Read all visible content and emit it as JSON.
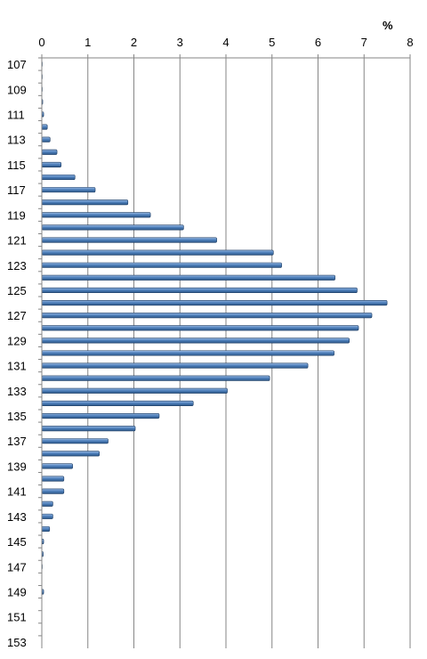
{
  "chart_data": {
    "type": "bar",
    "orientation": "horizontal",
    "unit_label": "%",
    "title": "",
    "xlabel": "",
    "ylabel": "",
    "xlim": [
      0,
      8
    ],
    "x_ticks": [
      0,
      1,
      2,
      3,
      4,
      5,
      6,
      7,
      8
    ],
    "x_axis_position": "top",
    "grid": "vertical",
    "legend": "none",
    "bar_color": "#4f81bd",
    "categories": [
      107,
      108,
      109,
      110,
      111,
      112,
      113,
      114,
      115,
      116,
      117,
      118,
      119,
      120,
      121,
      122,
      123,
      124,
      125,
      126,
      127,
      128,
      129,
      130,
      131,
      132,
      133,
      134,
      135,
      136,
      137,
      138,
      139,
      140,
      141,
      142,
      143,
      144,
      145,
      146,
      147,
      148,
      149,
      150,
      151,
      152,
      153
    ],
    "category_labels": [
      "107",
      "",
      "109",
      "",
      "111",
      "",
      "113",
      "",
      "115",
      "",
      "117",
      "",
      "119",
      "",
      "121",
      "",
      "123",
      "",
      "125",
      "",
      "127",
      "",
      "129",
      "",
      "131",
      "",
      "133",
      "",
      "135",
      "",
      "137",
      "",
      "139",
      "",
      "141",
      "",
      "143",
      "",
      "145",
      "",
      "147",
      "",
      "149",
      "",
      "151",
      "",
      "153"
    ],
    "values": [
      0.01,
      0.01,
      0.01,
      0.02,
      0.04,
      0.12,
      0.18,
      0.33,
      0.42,
      0.72,
      1.16,
      1.87,
      2.36,
      3.08,
      3.8,
      5.03,
      5.21,
      6.37,
      6.85,
      7.5,
      7.17,
      6.88,
      6.68,
      6.35,
      5.78,
      4.95,
      4.03,
      3.29,
      2.55,
      2.03,
      1.44,
      1.25,
      0.67,
      0.48,
      0.48,
      0.24,
      0.24,
      0.17,
      0.04,
      0.03,
      0.01,
      0.0,
      0.04,
      0.0,
      0.0,
      0.0,
      0.0
    ]
  }
}
